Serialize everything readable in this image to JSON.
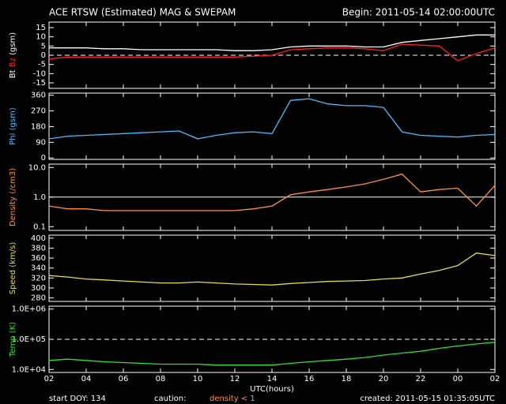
{
  "header": {
    "title": "ACE RTSW (Estimated) MAG & SWEPAM",
    "begin": "Begin: 2011-05-14 02:00:00UTC"
  },
  "footer": {
    "start": "start DOY: 134",
    "caution": "caution:",
    "caution_note": "density < 1",
    "created": "created: 2011-05-15 01:35:05UTC"
  },
  "chart_data": [
    {
      "type": "line",
      "ylabel_unit": "(gsm)",
      "ylim": [
        -18,
        18
      ],
      "yticks": [
        15,
        10,
        5,
        0,
        -5,
        -10,
        -15
      ],
      "hlines": [
        {
          "value": 0,
          "style": "dashed"
        }
      ],
      "x": [
        2,
        3,
        4,
        5,
        6,
        7,
        8,
        9,
        10,
        11,
        12,
        13,
        14,
        15,
        16,
        17,
        18,
        19,
        20,
        21,
        22,
        23,
        24,
        25,
        26
      ],
      "xlim": [
        2,
        26
      ],
      "series": [
        {
          "name": "Bt",
          "color": "#ffffff",
          "values": [
            4,
            4,
            4,
            3.5,
            3.5,
            3,
            3,
            3,
            3,
            3,
            2.5,
            2.5,
            3,
            4.5,
            5,
            5,
            5,
            4.5,
            4.5,
            7,
            8,
            9,
            10,
            11,
            11
          ]
        },
        {
          "name": "Bz",
          "color": "#ff2020",
          "values": [
            -2,
            -1,
            -1,
            -1,
            -1,
            -1,
            -1,
            -1,
            -1,
            -1,
            -1,
            -0.5,
            0,
            3,
            3.5,
            4,
            4,
            3.5,
            2.5,
            6,
            5.5,
            5,
            -3,
            1,
            4
          ]
        }
      ]
    },
    {
      "type": "line",
      "ylabel_unit": "(gsm)",
      "ylim": [
        -8,
        372
      ],
      "yticks": [
        360,
        270,
        180,
        90,
        0
      ],
      "x": [
        2,
        3,
        4,
        5,
        6,
        7,
        8,
        9,
        10,
        11,
        12,
        13,
        14,
        15,
        16,
        17,
        18,
        19,
        20,
        21,
        22,
        23,
        24,
        25,
        26
      ],
      "xlim": [
        2,
        26
      ],
      "series": [
        {
          "name": "Phi",
          "color": "#40c0ff",
          "values": [
            110,
            125,
            130,
            135,
            140,
            145,
            150,
            155,
            110,
            130,
            145,
            150,
            140,
            330,
            340,
            310,
            300,
            300,
            290,
            150,
            130,
            125,
            120,
            130,
            135
          ]
        }
      ]
    },
    {
      "type": "line",
      "log": true,
      "ylabel_unit": "(/cm3)",
      "ylim": [
        0.075,
        13
      ],
      "yticks": [
        {
          "value": 10,
          "label": "10.0"
        },
        {
          "value": 1,
          "label": "1.0"
        },
        0.1
      ],
      "hlines": [
        {
          "value": 1,
          "style": "solid"
        }
      ],
      "x": [
        2,
        3,
        4,
        5,
        6,
        7,
        8,
        9,
        10,
        11,
        12,
        13,
        14,
        15,
        16,
        17,
        18,
        19,
        20,
        21,
        22,
        23,
        24,
        25,
        26
      ],
      "xlim": [
        2,
        26
      ],
      "series": [
        {
          "name": "Density",
          "color": "#ff9040",
          "values": [
            0.5,
            0.4,
            0.4,
            0.35,
            0.35,
            0.35,
            0.35,
            0.35,
            0.35,
            0.35,
            0.35,
            0.4,
            0.5,
            1.2,
            1.5,
            1.8,
            2.2,
            2.8,
            4,
            6,
            1.5,
            1.8,
            2,
            0.5,
            2.5
          ]
        }
      ]
    },
    {
      "type": "line",
      "ylabel_unit": "(km/s)",
      "ylim": [
        273,
        406
      ],
      "yticks": [
        400,
        380,
        360,
        340,
        320,
        300,
        280
      ],
      "x": [
        2,
        3,
        4,
        5,
        6,
        7,
        8,
        9,
        10,
        11,
        12,
        13,
        14,
        15,
        16,
        17,
        18,
        19,
        20,
        21,
        22,
        23,
        24,
        25,
        26
      ],
      "xlim": [
        2,
        26
      ],
      "series": [
        {
          "name": "Speed",
          "color": "#e0e040",
          "values": [
            325,
            322,
            318,
            316,
            314,
            312,
            310,
            310,
            312,
            310,
            308,
            307,
            306,
            309,
            311,
            313,
            314,
            315,
            318,
            320,
            328,
            335,
            345,
            370,
            365
          ]
        }
      ]
    },
    {
      "type": "line",
      "log": true,
      "ylabel_unit": "(K)",
      "ylim": [
        8000,
        1250000
      ],
      "yticks": [
        {
          "value": 1000000,
          "label": "1.0E+06"
        },
        {
          "value": 100000,
          "label": "1.0E+05"
        },
        {
          "value": 10000,
          "label": "1.0E+04"
        }
      ],
      "hlines": [
        {
          "value": 100000,
          "style": "dashed"
        }
      ],
      "x": [
        2,
        3,
        4,
        5,
        6,
        7,
        8,
        9,
        10,
        11,
        12,
        13,
        14,
        15,
        16,
        17,
        18,
        19,
        20,
        21,
        22,
        23,
        24,
        25,
        26
      ],
      "xlim": [
        2,
        26
      ],
      "xlabel": "UTC(hours)",
      "xticks": [
        {
          "value": 2,
          "label": "02"
        },
        {
          "value": 4,
          "label": "04"
        },
        {
          "value": 6,
          "label": "06"
        },
        {
          "value": 8,
          "label": "08"
        },
        10,
        12,
        14,
        16,
        18,
        20,
        22,
        {
          "value": 24,
          "label": "00"
        },
        {
          "value": 26,
          "label": "02"
        }
      ],
      "series": [
        {
          "name": "Temp",
          "color": "#30e030",
          "values": [
            20000,
            22000,
            20000,
            18000,
            17000,
            16000,
            15000,
            15000,
            15000,
            14000,
            14000,
            14000,
            14000,
            16000,
            18000,
            20000,
            22000,
            25000,
            30000,
            35000,
            40000,
            50000,
            60000,
            70000,
            80000
          ]
        }
      ]
    }
  ]
}
